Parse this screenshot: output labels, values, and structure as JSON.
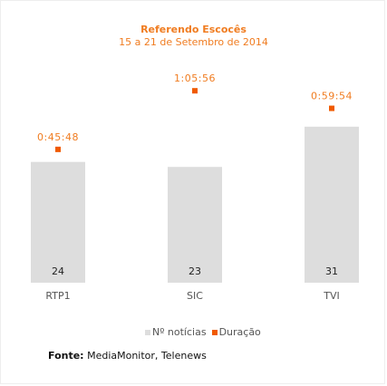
{
  "chart_data": {
    "type": "bar",
    "title": "Referendo Escocês",
    "subtitle": "15 a 21 de Setembro de 2014",
    "categories": [
      "RTP1",
      "SIC",
      "TVI"
    ],
    "series": [
      {
        "name": "Nº notícias",
        "type": "bar",
        "values": [
          24,
          23,
          31
        ],
        "color": "#dddddd"
      },
      {
        "name": "Duração",
        "type": "scatter",
        "values": [
          "0:45:48",
          "1:05:56",
          "0:59:54"
        ],
        "seconds": [
          2748,
          3956,
          3594
        ],
        "color": "#f05a00"
      }
    ],
    "ylim_bars": [
      0,
      36
    ],
    "ylim_duration_seconds": [
      0,
      4800
    ],
    "grid": false,
    "legend_position": "bottom"
  },
  "source": {
    "label": "Fonte:",
    "text": " MediaMonitor, Telenews"
  }
}
